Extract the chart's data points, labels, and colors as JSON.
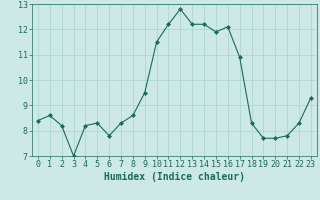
{
  "x": [
    0,
    1,
    2,
    3,
    4,
    5,
    6,
    7,
    8,
    9,
    10,
    11,
    12,
    13,
    14,
    15,
    16,
    17,
    18,
    19,
    20,
    21,
    22,
    23
  ],
  "y": [
    8.4,
    8.6,
    8.2,
    7.0,
    8.2,
    8.3,
    7.8,
    8.3,
    8.6,
    9.5,
    11.5,
    12.2,
    12.8,
    12.2,
    12.2,
    11.9,
    12.1,
    10.9,
    8.3,
    7.7,
    7.7,
    7.8,
    8.3,
    9.3
  ],
  "line_color": "#1a6b5a",
  "marker_color": "#1a6b5a",
  "bg_color": "#cce9e5",
  "grid_color": "#aad4cf",
  "xlabel": "Humidex (Indice chaleur)",
  "ylim": [
    7,
    13
  ],
  "xlim_min": -0.5,
  "xlim_max": 23.5,
  "yticks": [
    7,
    8,
    9,
    10,
    11,
    12,
    13
  ],
  "xticks": [
    0,
    1,
    2,
    3,
    4,
    5,
    6,
    7,
    8,
    9,
    10,
    11,
    12,
    13,
    14,
    15,
    16,
    17,
    18,
    19,
    20,
    21,
    22,
    23
  ],
  "tick_color": "#1a6b5a",
  "label_fontsize": 7,
  "tick_fontsize": 6,
  "line_width": 0.8,
  "marker_size": 2.0
}
